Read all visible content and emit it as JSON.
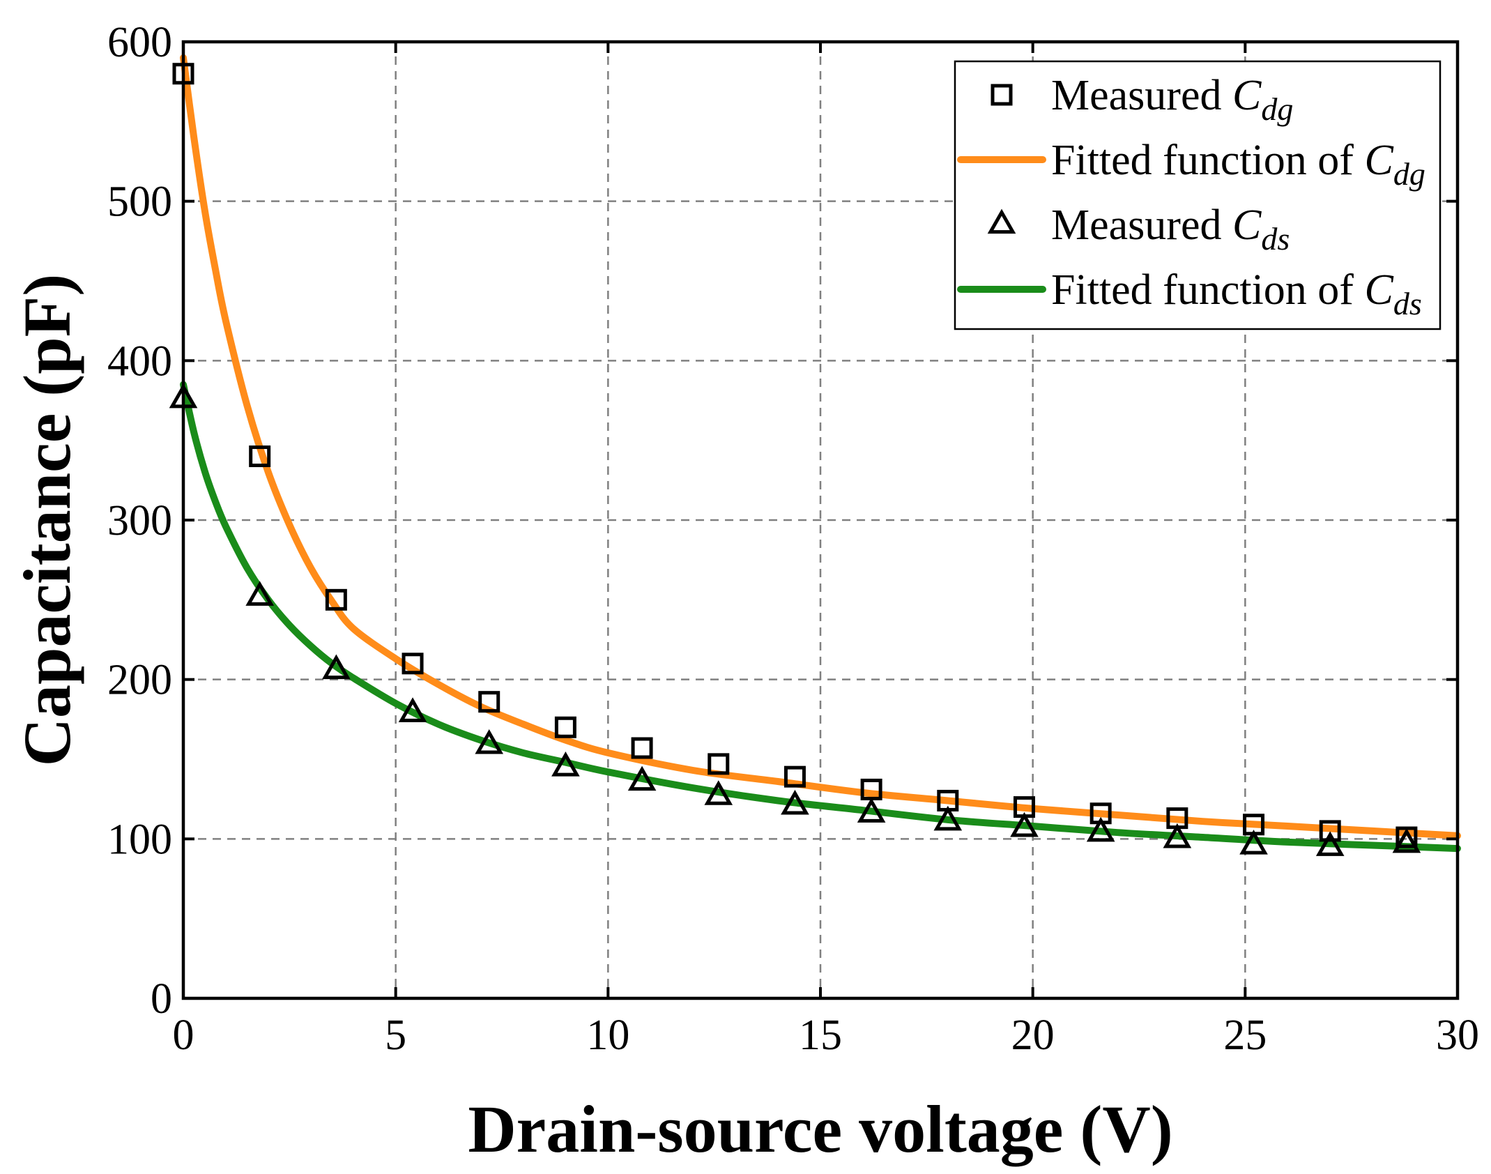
{
  "chart_data": {
    "type": "scatter",
    "title": "",
    "xlabel": "Drain-source voltage (V)",
    "ylabel": "Capacitance (pF)",
    "xlim": [
      0,
      30
    ],
    "ylim": [
      0,
      600
    ],
    "xticks": [
      "0",
      "5",
      "10",
      "15",
      "20",
      "25",
      "30"
    ],
    "yticks": [
      "0",
      "100",
      "200",
      "300",
      "400",
      "500",
      "600"
    ],
    "grid": true,
    "legend_position": "top-right",
    "series": [
      {
        "name": "Measured C_dg",
        "legend_main": "Measured ",
        "legend_symbol": "C",
        "legend_sub": "dg",
        "kind": "marker",
        "marker": "square",
        "color": "#000000",
        "x": [
          0,
          1.8,
          3.6,
          5.4,
          7.2,
          9.0,
          10.8,
          12.6,
          14.4,
          16.2,
          18.0,
          19.8,
          21.6,
          23.4,
          25.2,
          27.0,
          28.8
        ],
        "y": [
          580,
          340,
          250,
          210,
          186,
          170,
          157,
          147,
          139,
          131,
          124,
          120,
          116,
          113,
          109,
          105,
          101
        ]
      },
      {
        "name": "Fitted function of C_dg",
        "legend_main": "Fitted function of ",
        "legend_symbol": "C",
        "legend_sub": "dg",
        "kind": "line",
        "color": "#FF8C1A",
        "x": [
          0,
          0.25,
          0.5,
          0.75,
          1.0,
          1.5,
          2.0,
          2.5,
          3.0,
          3.5,
          4.0,
          5.0,
          6.0,
          7.0,
          8.0,
          9.0,
          10.0,
          12.0,
          14.0,
          16.0,
          18.0,
          20.0,
          22.0,
          24.0,
          26.0,
          28.0,
          30.0
        ],
        "y": [
          590,
          540,
          495,
          458,
          425,
          372,
          330,
          297,
          270,
          249,
          232,
          213,
          197,
          183,
          172,
          162,
          154,
          143,
          136,
          129,
          124,
          119,
          115,
          111,
          108,
          105,
          102
        ]
      },
      {
        "name": "Measured C_ds",
        "legend_main": "Measured ",
        "legend_symbol": "C",
        "legend_sub": "ds",
        "kind": "marker",
        "marker": "triangle",
        "color": "#000000",
        "x": [
          0,
          1.8,
          3.6,
          5.4,
          7.2,
          9.0,
          10.8,
          12.6,
          14.4,
          16.2,
          18.0,
          19.8,
          21.6,
          23.4,
          25.2,
          27.0,
          28.8
        ],
        "y": [
          376,
          252,
          206,
          179,
          159,
          145,
          136,
          127,
          121,
          116,
          111,
          107,
          104,
          100,
          96,
          95,
          97
        ]
      },
      {
        "name": "Fitted function of C_ds",
        "legend_main": "Fitted function of ",
        "legend_symbol": "C",
        "legend_sub": "ds",
        "kind": "line",
        "color": "#1A8C1A",
        "x": [
          0,
          0.25,
          0.5,
          0.75,
          1.0,
          1.5,
          2.0,
          2.5,
          3.0,
          3.5,
          4.0,
          5.0,
          6.0,
          7.0,
          8.0,
          9.0,
          10.0,
          12.0,
          14.0,
          16.0,
          18.0,
          20.0,
          22.0,
          24.0,
          26.0,
          28.0,
          30.0
        ],
        "y": [
          385,
          355,
          331,
          312,
          296,
          270,
          250,
          234,
          221,
          210,
          201,
          185,
          172,
          162,
          154,
          148,
          142,
          132,
          124,
          118,
          112,
          108,
          104,
          101,
          98,
          96,
          94
        ]
      }
    ]
  }
}
